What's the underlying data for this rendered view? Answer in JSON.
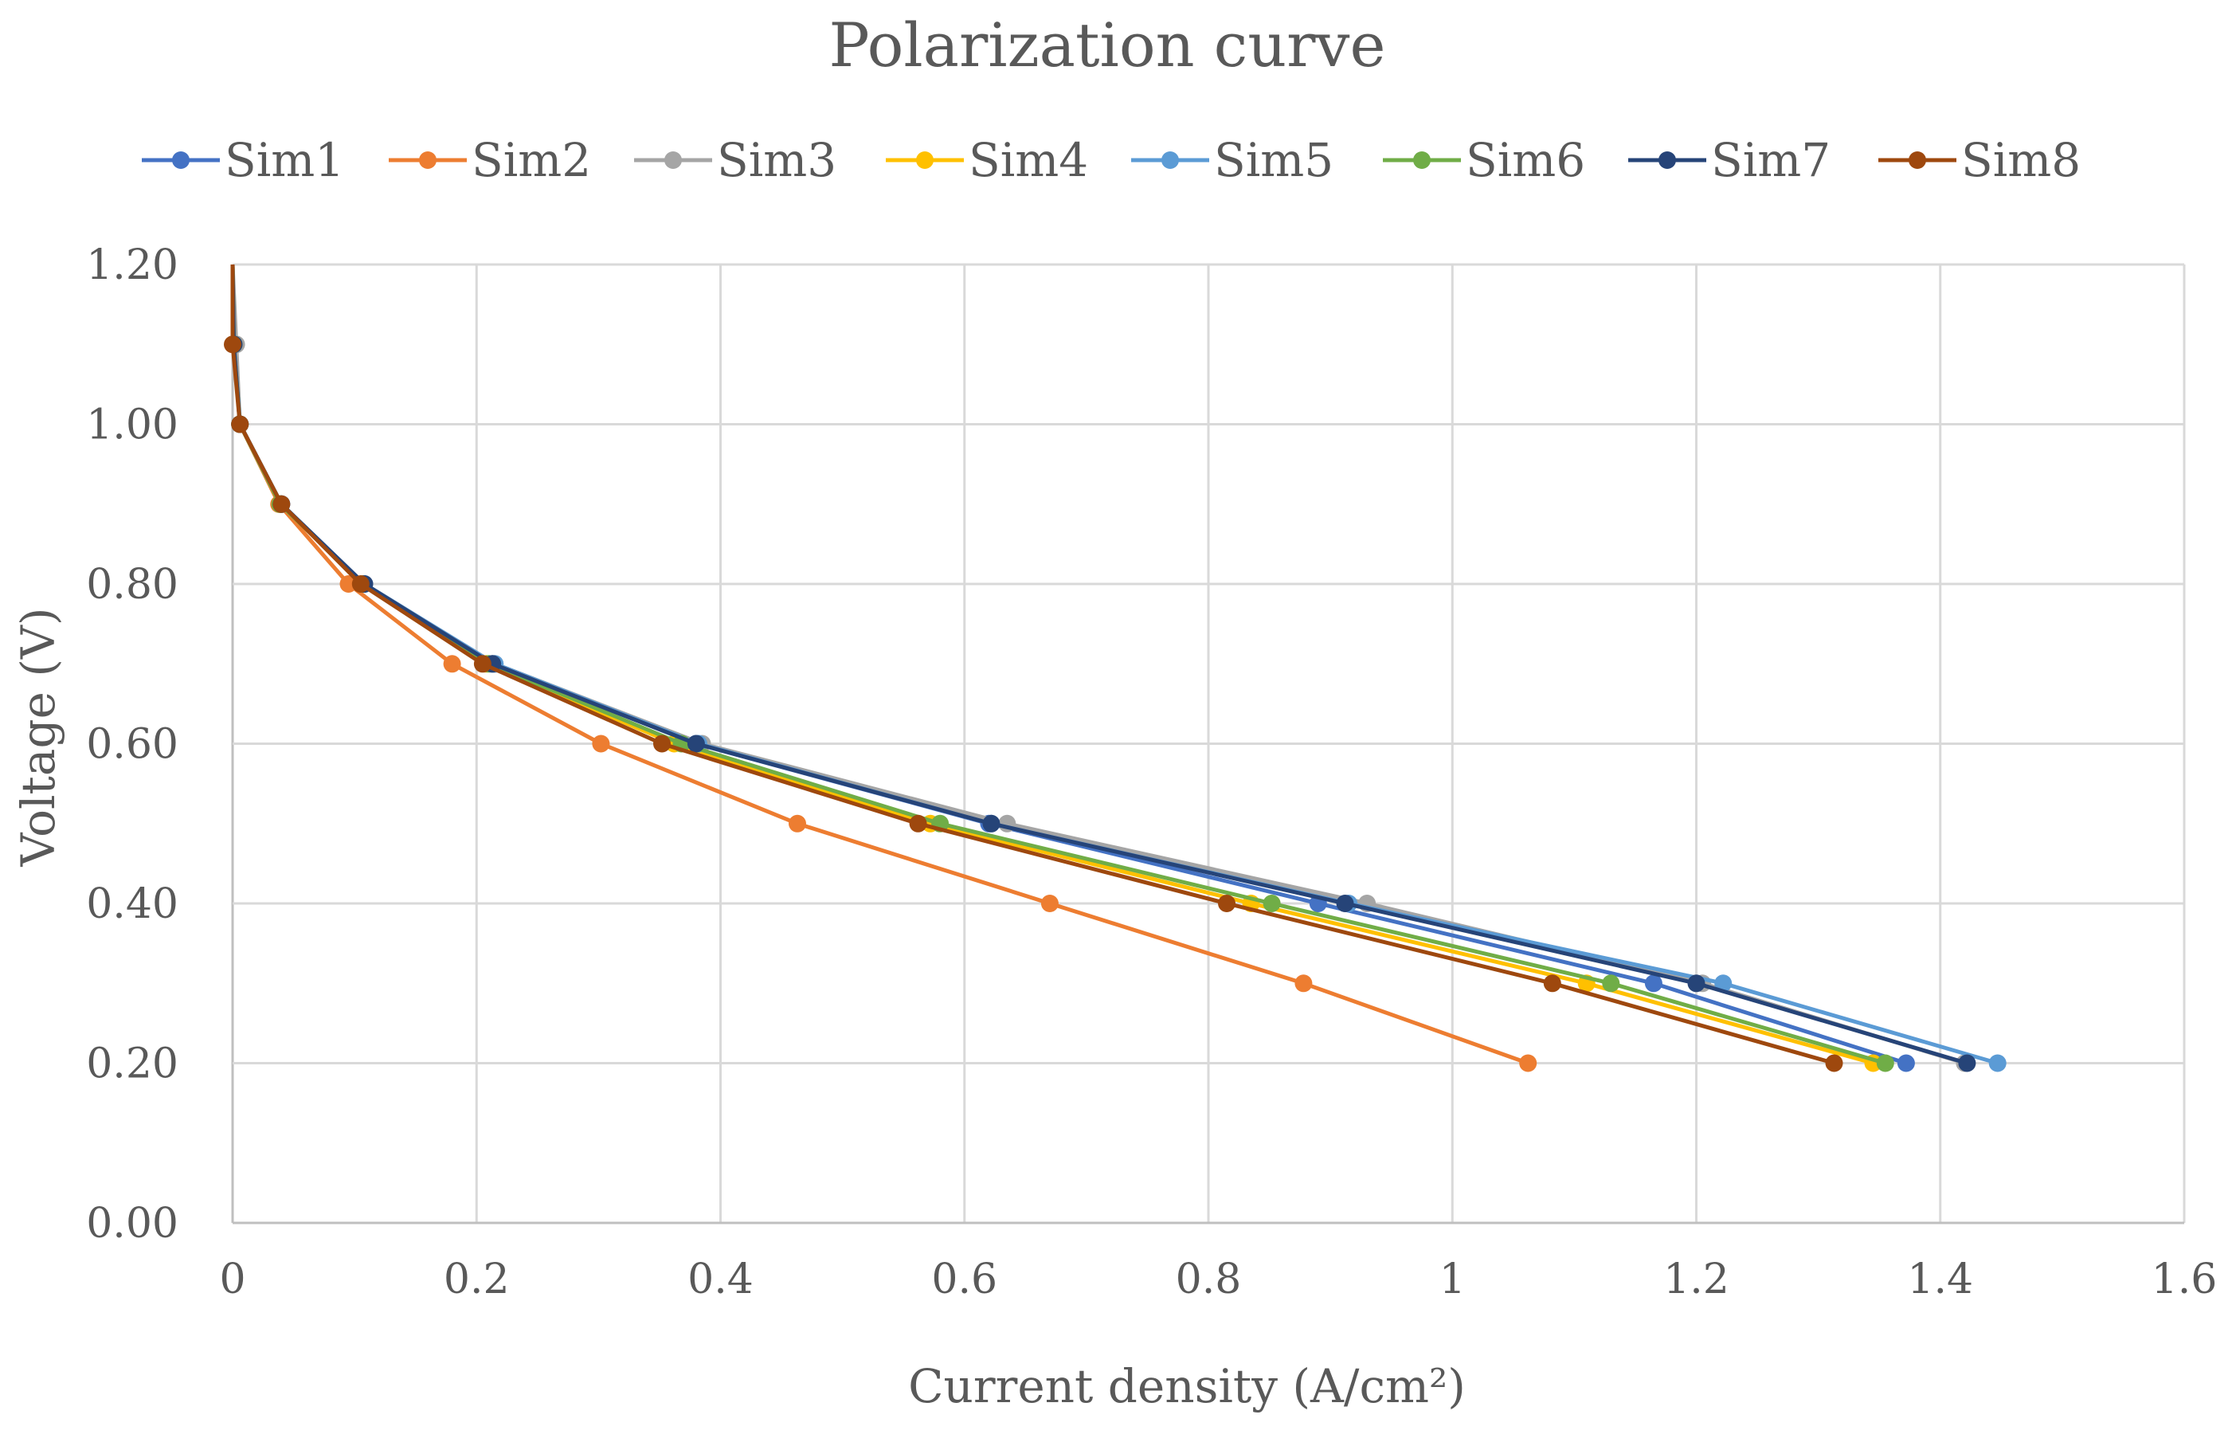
{
  "chart_data": {
    "type": "line",
    "title": "Polarization curve",
    "xlabel": "Current density (A/cm²)",
    "ylabel": "Voltage (V)",
    "xlim": [
      0,
      1.6
    ],
    "ylim": [
      0,
      1.2
    ],
    "x_ticks": [
      "0",
      "0.2",
      "0.4",
      "0.6",
      "0.8",
      "1",
      "1.2",
      "1.4",
      "1.6"
    ],
    "y_ticks": [
      "0.00",
      "0.20",
      "0.40",
      "0.60",
      "0.80",
      "1.00",
      "1.20"
    ],
    "legend_position": "top",
    "grid": true,
    "series": [
      {
        "name": "Sim1",
        "color": "#4472C4",
        "points": [
          [
            0.0,
            1.2
          ],
          [
            0.001,
            1.1
          ],
          [
            0.006,
            1.0
          ],
          [
            0.04,
            0.9
          ],
          [
            0.108,
            0.8
          ],
          [
            0.213,
            0.7
          ],
          [
            0.38,
            0.6
          ],
          [
            0.62,
            0.5
          ],
          [
            0.89,
            0.4
          ],
          [
            1.165,
            0.3
          ],
          [
            1.372,
            0.2
          ]
        ]
      },
      {
        "name": "Sim2",
        "color": "#ED7D31",
        "points": [
          [
            0.0,
            1.2
          ],
          [
            0.001,
            1.1
          ],
          [
            0.006,
            1.0
          ],
          [
            0.038,
            0.9
          ],
          [
            0.095,
            0.8
          ],
          [
            0.18,
            0.7
          ],
          [
            0.302,
            0.6
          ],
          [
            0.463,
            0.5
          ],
          [
            0.67,
            0.4
          ],
          [
            0.878,
            0.3
          ],
          [
            1.062,
            0.2
          ]
        ]
      },
      {
        "name": "Sim3",
        "color": "#A5A5A5",
        "points": [
          [
            0.0,
            1.2
          ],
          [
            0.003,
            1.1
          ],
          [
            0.006,
            1.0
          ],
          [
            0.04,
            0.9
          ],
          [
            0.108,
            0.8
          ],
          [
            0.215,
            0.7
          ],
          [
            0.385,
            0.6
          ],
          [
            0.635,
            0.5
          ],
          [
            0.93,
            0.4
          ],
          [
            1.205,
            0.3
          ],
          [
            1.42,
            0.2
          ]
        ]
      },
      {
        "name": "Sim4",
        "color": "#FFC000",
        "points": [
          [
            0.0,
            1.2
          ],
          [
            0.001,
            1.1
          ],
          [
            0.006,
            1.0
          ],
          [
            0.039,
            0.9
          ],
          [
            0.107,
            0.8
          ],
          [
            0.208,
            0.7
          ],
          [
            0.362,
            0.6
          ],
          [
            0.572,
            0.5
          ],
          [
            0.835,
            0.4
          ],
          [
            1.11,
            0.3
          ],
          [
            1.345,
            0.2
          ]
        ]
      },
      {
        "name": "Sim5",
        "color": "#5B9BD5",
        "points": [
          [
            0.0,
            1.2
          ],
          [
            0.001,
            1.1
          ],
          [
            0.006,
            1.0
          ],
          [
            0.04,
            0.9
          ],
          [
            0.108,
            0.8
          ],
          [
            0.215,
            0.7
          ],
          [
            0.382,
            0.6
          ],
          [
            0.622,
            0.5
          ],
          [
            0.915,
            0.4
          ],
          [
            1.222,
            0.3
          ],
          [
            1.447,
            0.2
          ]
        ]
      },
      {
        "name": "Sim6",
        "color": "#70AD47",
        "points": [
          [
            0.0,
            1.2
          ],
          [
            0.001,
            1.1
          ],
          [
            0.006,
            1.0
          ],
          [
            0.039,
            0.9
          ],
          [
            0.107,
            0.8
          ],
          [
            0.21,
            0.7
          ],
          [
            0.368,
            0.6
          ],
          [
            0.58,
            0.5
          ],
          [
            0.852,
            0.4
          ],
          [
            1.13,
            0.3
          ],
          [
            1.355,
            0.2
          ]
        ]
      },
      {
        "name": "Sim7",
        "color": "#264478",
        "points": [
          [
            0.0,
            1.2
          ],
          [
            0.001,
            1.1
          ],
          [
            0.006,
            1.0
          ],
          [
            0.04,
            0.9
          ],
          [
            0.108,
            0.8
          ],
          [
            0.213,
            0.7
          ],
          [
            0.38,
            0.6
          ],
          [
            0.622,
            0.5
          ],
          [
            0.912,
            0.4
          ],
          [
            1.2,
            0.3
          ],
          [
            1.422,
            0.2
          ]
        ]
      },
      {
        "name": "Sim8",
        "color": "#9E480E",
        "points": [
          [
            0.0,
            1.2
          ],
          [
            0.0,
            1.1
          ],
          [
            0.006,
            1.0
          ],
          [
            0.04,
            0.9
          ],
          [
            0.105,
            0.8
          ],
          [
            0.205,
            0.7
          ],
          [
            0.352,
            0.6
          ],
          [
            0.562,
            0.5
          ],
          [
            0.815,
            0.4
          ],
          [
            1.082,
            0.3
          ],
          [
            1.313,
            0.2
          ]
        ]
      }
    ]
  }
}
